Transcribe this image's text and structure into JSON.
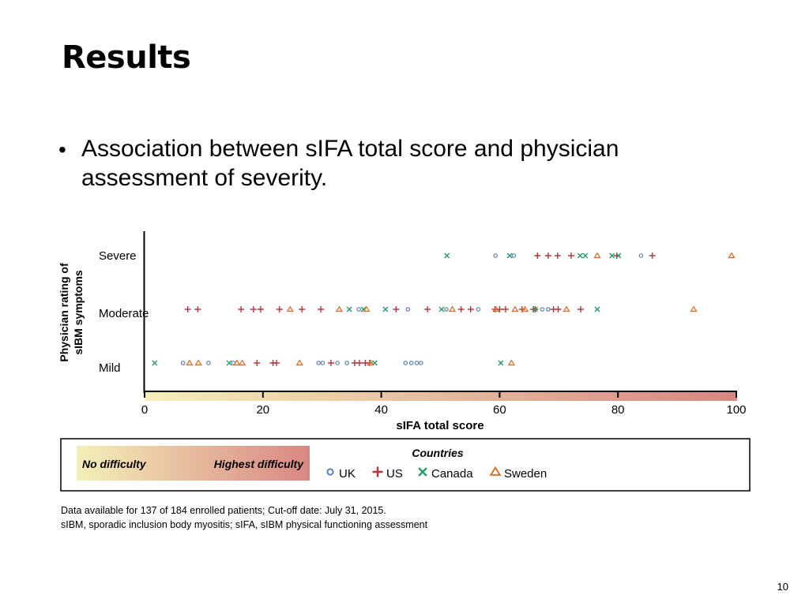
{
  "slide": {
    "title": "Results",
    "bullet": "Association between sIFA total score and physician assessment of severity.",
    "footnote_1": "Data available for 137 of 184 enrolled patients; Cut-off date: July 31, 2015.",
    "footnote_2": "sIBM, sporadic inclusion body myositis; sIFA, sIBM physical functioning assessment",
    "page_number": "10"
  },
  "chart_data": {
    "type": "scatter",
    "xlabel": "sIFA total score",
    "ylabel": [
      "Physician rating of",
      "sIBM symptoms"
    ],
    "xlim": [
      0,
      100
    ],
    "xticks": [
      0,
      20,
      40,
      60,
      80,
      100
    ],
    "categories": [
      "Mild",
      "Moderate",
      "Severe"
    ],
    "gradient": {
      "low_label": "No difficulty",
      "high_label": "Highest difficulty",
      "low_color": "#f4f0b8",
      "high_color": "#d98682"
    },
    "legend_title": "Countries",
    "series": [
      {
        "name": "UK",
        "marker": "circle",
        "color": "#5a7fb0",
        "points": {
          "Mild": [
            6.5,
            10.8,
            15,
            29.4,
            30.1,
            32.6,
            34.2,
            44.1,
            45.1,
            46,
            46.7
          ],
          "Moderate": [
            36.2,
            44.5,
            51,
            56.4,
            67.2,
            68.2
          ],
          "Severe": [
            59.3,
            62.4,
            83.9
          ]
        }
      },
      {
        "name": "US",
        "marker": "plus",
        "color": "#b03a3a",
        "points": {
          "Mild": [
            19,
            21.7,
            22.3,
            31.5,
            35.5,
            36.3,
            37.3,
            38
          ],
          "Moderate": [
            7.3,
            9,
            16.3,
            18.4,
            19.6,
            22.8,
            26.6,
            29.8,
            42.5,
            47.8,
            53.5,
            55.1,
            59.2,
            60,
            61,
            63.8,
            65.7,
            66,
            69.1,
            69.9,
            73.7
          ],
          "Severe": [
            66.4,
            68.2,
            69.8,
            72.1,
            79.8,
            85.8
          ]
        }
      },
      {
        "name": "Canada",
        "marker": "x",
        "color": "#2a9a68",
        "points": {
          "Mild": [
            1.7,
            14.3,
            38.9,
            60.2
          ],
          "Moderate": [
            34.6,
            37,
            40.7,
            50.2,
            66,
            76.5
          ],
          "Severe": [
            51.1,
            61.7,
            73.6,
            74.5,
            79,
            80.1
          ]
        }
      },
      {
        "name": "Sweden",
        "marker": "triangle",
        "color": "#d9732e",
        "points": {
          "Mild": [
            7.6,
            9.1,
            15.6,
            16.5,
            26.2,
            38.2,
            62
          ],
          "Moderate": [
            24.6,
            32.9,
            37.5,
            52,
            59.4,
            62.6,
            64.3,
            71.3,
            92.8
          ],
          "Severe": [
            76.5,
            99.2
          ]
        }
      }
    ]
  }
}
